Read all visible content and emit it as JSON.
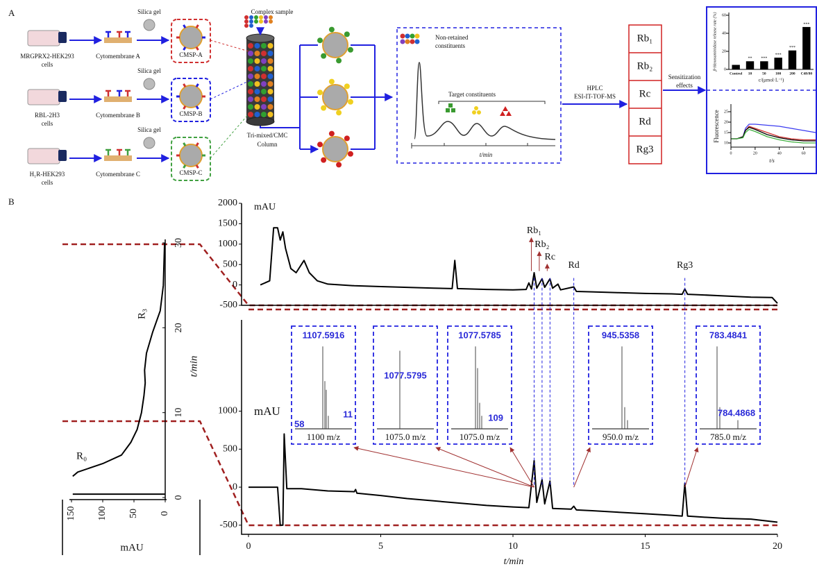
{
  "panel_a": {
    "label": "A",
    "rows": [
      {
        "cell": [
          "MRGPRX2-HEK293",
          "cells"
        ],
        "membrane": "Cytomembrane A",
        "silica": "Silica gel",
        "cmsp": "CMSP-A"
      },
      {
        "cell": [
          "RBL-2H3",
          "cells"
        ],
        "membrane": "Cytomembrane B",
        "silica": "Silica gel",
        "cmsp": "CMSP-B"
      },
      {
        "cell": [
          "H₁R-HEK293",
          "cells"
        ],
        "membrane": "Cytomembrane C",
        "silica": "Silica gel",
        "cmsp": "CMSP-C"
      }
    ],
    "complex_sample": "Complex sample",
    "column": [
      "Tri-mixed/CMC",
      "Column"
    ],
    "non_retained": [
      "Non-retained",
      "constituents"
    ],
    "target": "Target constituents",
    "t_axis": "t/min",
    "hplc": [
      "HPLC",
      "ESI-IT-TOF-MS"
    ],
    "compounds": [
      "Rb₁",
      "Rb₂",
      "Rc",
      "Rd",
      "Rg3"
    ],
    "sensitization": [
      "Sensitization",
      "effects"
    ]
  },
  "panel_b": {
    "label": "B",
    "insets": [
      {
        "labels": [
          "1107.5916",
          "58",
          "11"
        ],
        "xlabel": "1100 m/z"
      },
      {
        "labels": [
          "1077.5795"
        ],
        "xlabel": "1075.0 m/z"
      },
      {
        "labels": [
          "1077.5785",
          "109"
        ],
        "xlabel": "1075.0 m/z"
      },
      {
        "labels": [
          "945.5358"
        ],
        "xlabel": "950.0 m/z"
      },
      {
        "labels": [
          "783.4841",
          "784.4868"
        ],
        "xlabel": "785.0 m/z"
      }
    ]
  },
  "chart_data": [
    {
      "type": "bar",
      "ylabel": "β-Hexosaminidase release rate (%)",
      "xlabel": "c/(μmol·L⁻¹)",
      "categories": [
        "Control",
        "10",
        "50",
        "100",
        "200",
        "C48/80"
      ],
      "values": [
        5,
        9,
        9,
        13,
        21,
        47
      ],
      "significance": [
        null,
        "**",
        "***",
        "***",
        "***",
        "***"
      ],
      "color": "#000000",
      "ylim": [
        0,
        60
      ],
      "yticks": [
        0,
        20,
        40,
        60
      ]
    },
    {
      "type": "line",
      "ylabel": "Fluorescence",
      "xlabel": "t/s",
      "x": [
        0,
        5,
        10,
        12,
        15,
        20,
        30,
        40,
        50,
        60,
        70
      ],
      "series": [
        {
          "color": "#3b3bf0",
          "values": [
            12,
            12,
            13,
            17,
            19,
            19,
            18.5,
            18,
            17,
            16,
            15
          ]
        },
        {
          "color": "#d03030",
          "values": [
            12,
            12,
            13,
            16,
            18,
            17,
            15,
            13,
            12,
            11.5,
            11.5
          ]
        },
        {
          "color": "#000000",
          "values": [
            12,
            12,
            13,
            16,
            17.5,
            16.5,
            14,
            12.5,
            11.5,
            11,
            11
          ]
        },
        {
          "color": "#40b040",
          "values": [
            12,
            12,
            12.5,
            15,
            16.5,
            15.5,
            13,
            11.5,
            10.5,
            10,
            10
          ]
        }
      ],
      "xlim": [
        0,
        70
      ],
      "xticks": [
        0,
        20,
        40,
        60
      ],
      "ylim": [
        8,
        27
      ],
      "yticks": [
        10,
        15,
        20,
        25
      ]
    },
    {
      "type": "line",
      "ylabel": "t/min",
      "xlabel": "mAU",
      "labels": [
        "R₀",
        "R₃"
      ],
      "series": [
        {
          "color": "#000000",
          "x": [
            148,
            0
          ],
          "values": [
            0.4,
            0.4
          ]
        },
        {
          "color": "#000000",
          "x": [
            148,
            140,
            100,
            70,
            55,
            45,
            38,
            34,
            32,
            33,
            30,
            20,
            8,
            3,
            1
          ],
          "values": [
            2.5,
            3,
            4,
            5,
            6.5,
            8,
            10,
            12,
            13.5,
            15,
            17,
            19.5,
            22,
            25,
            30
          ]
        }
      ],
      "xlim": [
        150,
        0
      ],
      "xticks": [
        150,
        100,
        50,
        0
      ],
      "ylim": [
        0,
        30
      ],
      "yticks": [
        0,
        10,
        20,
        30
      ]
    },
    {
      "type": "line",
      "ylabel": "mAU",
      "annotations": [
        "Rb₁",
        "Rb₂",
        "Rc",
        "Rd",
        "Rg3"
      ],
      "color": "#000000",
      "x": [
        0.45,
        0.8,
        0.95,
        1.1,
        1.2,
        1.3,
        1.4,
        1.6,
        1.8,
        2.0,
        2.1,
        2.3,
        2.6,
        3,
        4,
        5,
        6,
        7,
        7.7,
        7.8,
        7.9,
        9,
        10,
        10.5,
        10.6,
        10.7,
        10.8,
        10.9,
        11.1,
        11.2,
        11.4,
        11.5,
        11.7,
        11.8,
        12.3,
        12.4,
        13,
        14,
        15,
        16,
        16.4,
        16.5,
        16.6,
        17,
        18,
        19,
        19.8,
        20
      ],
      "values": [
        0,
        100,
        1400,
        1400,
        1100,
        1300,
        900,
        400,
        300,
        500,
        600,
        300,
        100,
        20,
        -20,
        -40,
        -60,
        -80,
        -90,
        600,
        -90,
        -110,
        -120,
        -110,
        50,
        -100,
        300,
        -80,
        150,
        -60,
        150,
        -80,
        20,
        -120,
        -50,
        -160,
        -170,
        -190,
        -210,
        -220,
        -230,
        -100,
        -230,
        -240,
        -270,
        -300,
        -310,
        -450
      ],
      "xlim": [
        0,
        20
      ],
      "ylim": [
        -500,
        2000
      ],
      "yticks": [
        -500,
        0,
        500,
        1000,
        1500,
        2000
      ]
    },
    {
      "type": "line",
      "ylabel": "mAU",
      "xlabel": "t/min",
      "color": "#000000",
      "x": [
        0,
        1.1,
        1.2,
        1.3,
        1.35,
        1.45,
        2,
        3,
        4,
        4.05,
        4.1,
        5,
        6,
        7,
        8,
        9,
        10,
        10.6,
        10.8,
        10.9,
        11.1,
        11.2,
        11.4,
        11.5,
        12.2,
        12.3,
        12.4,
        13,
        14,
        15,
        16,
        16.4,
        16.5,
        16.6,
        17,
        18,
        19,
        20
      ],
      "values": [
        0,
        0,
        -500,
        -500,
        700,
        -20,
        -20,
        -50,
        -60,
        -30,
        -80,
        -110,
        -150,
        -180,
        -210,
        -240,
        -260,
        -270,
        350,
        -200,
        100,
        -220,
        80,
        -280,
        -290,
        -250,
        -300,
        -310,
        -330,
        -350,
        -370,
        -380,
        50,
        -380,
        -390,
        -410,
        -420,
        -460
      ],
      "xlim": [
        0,
        20
      ],
      "xticks": [
        0,
        5,
        10,
        15,
        20
      ],
      "ylim": [
        -620,
        2200
      ],
      "yticks": [
        -500,
        0,
        500,
        1000
      ]
    }
  ]
}
